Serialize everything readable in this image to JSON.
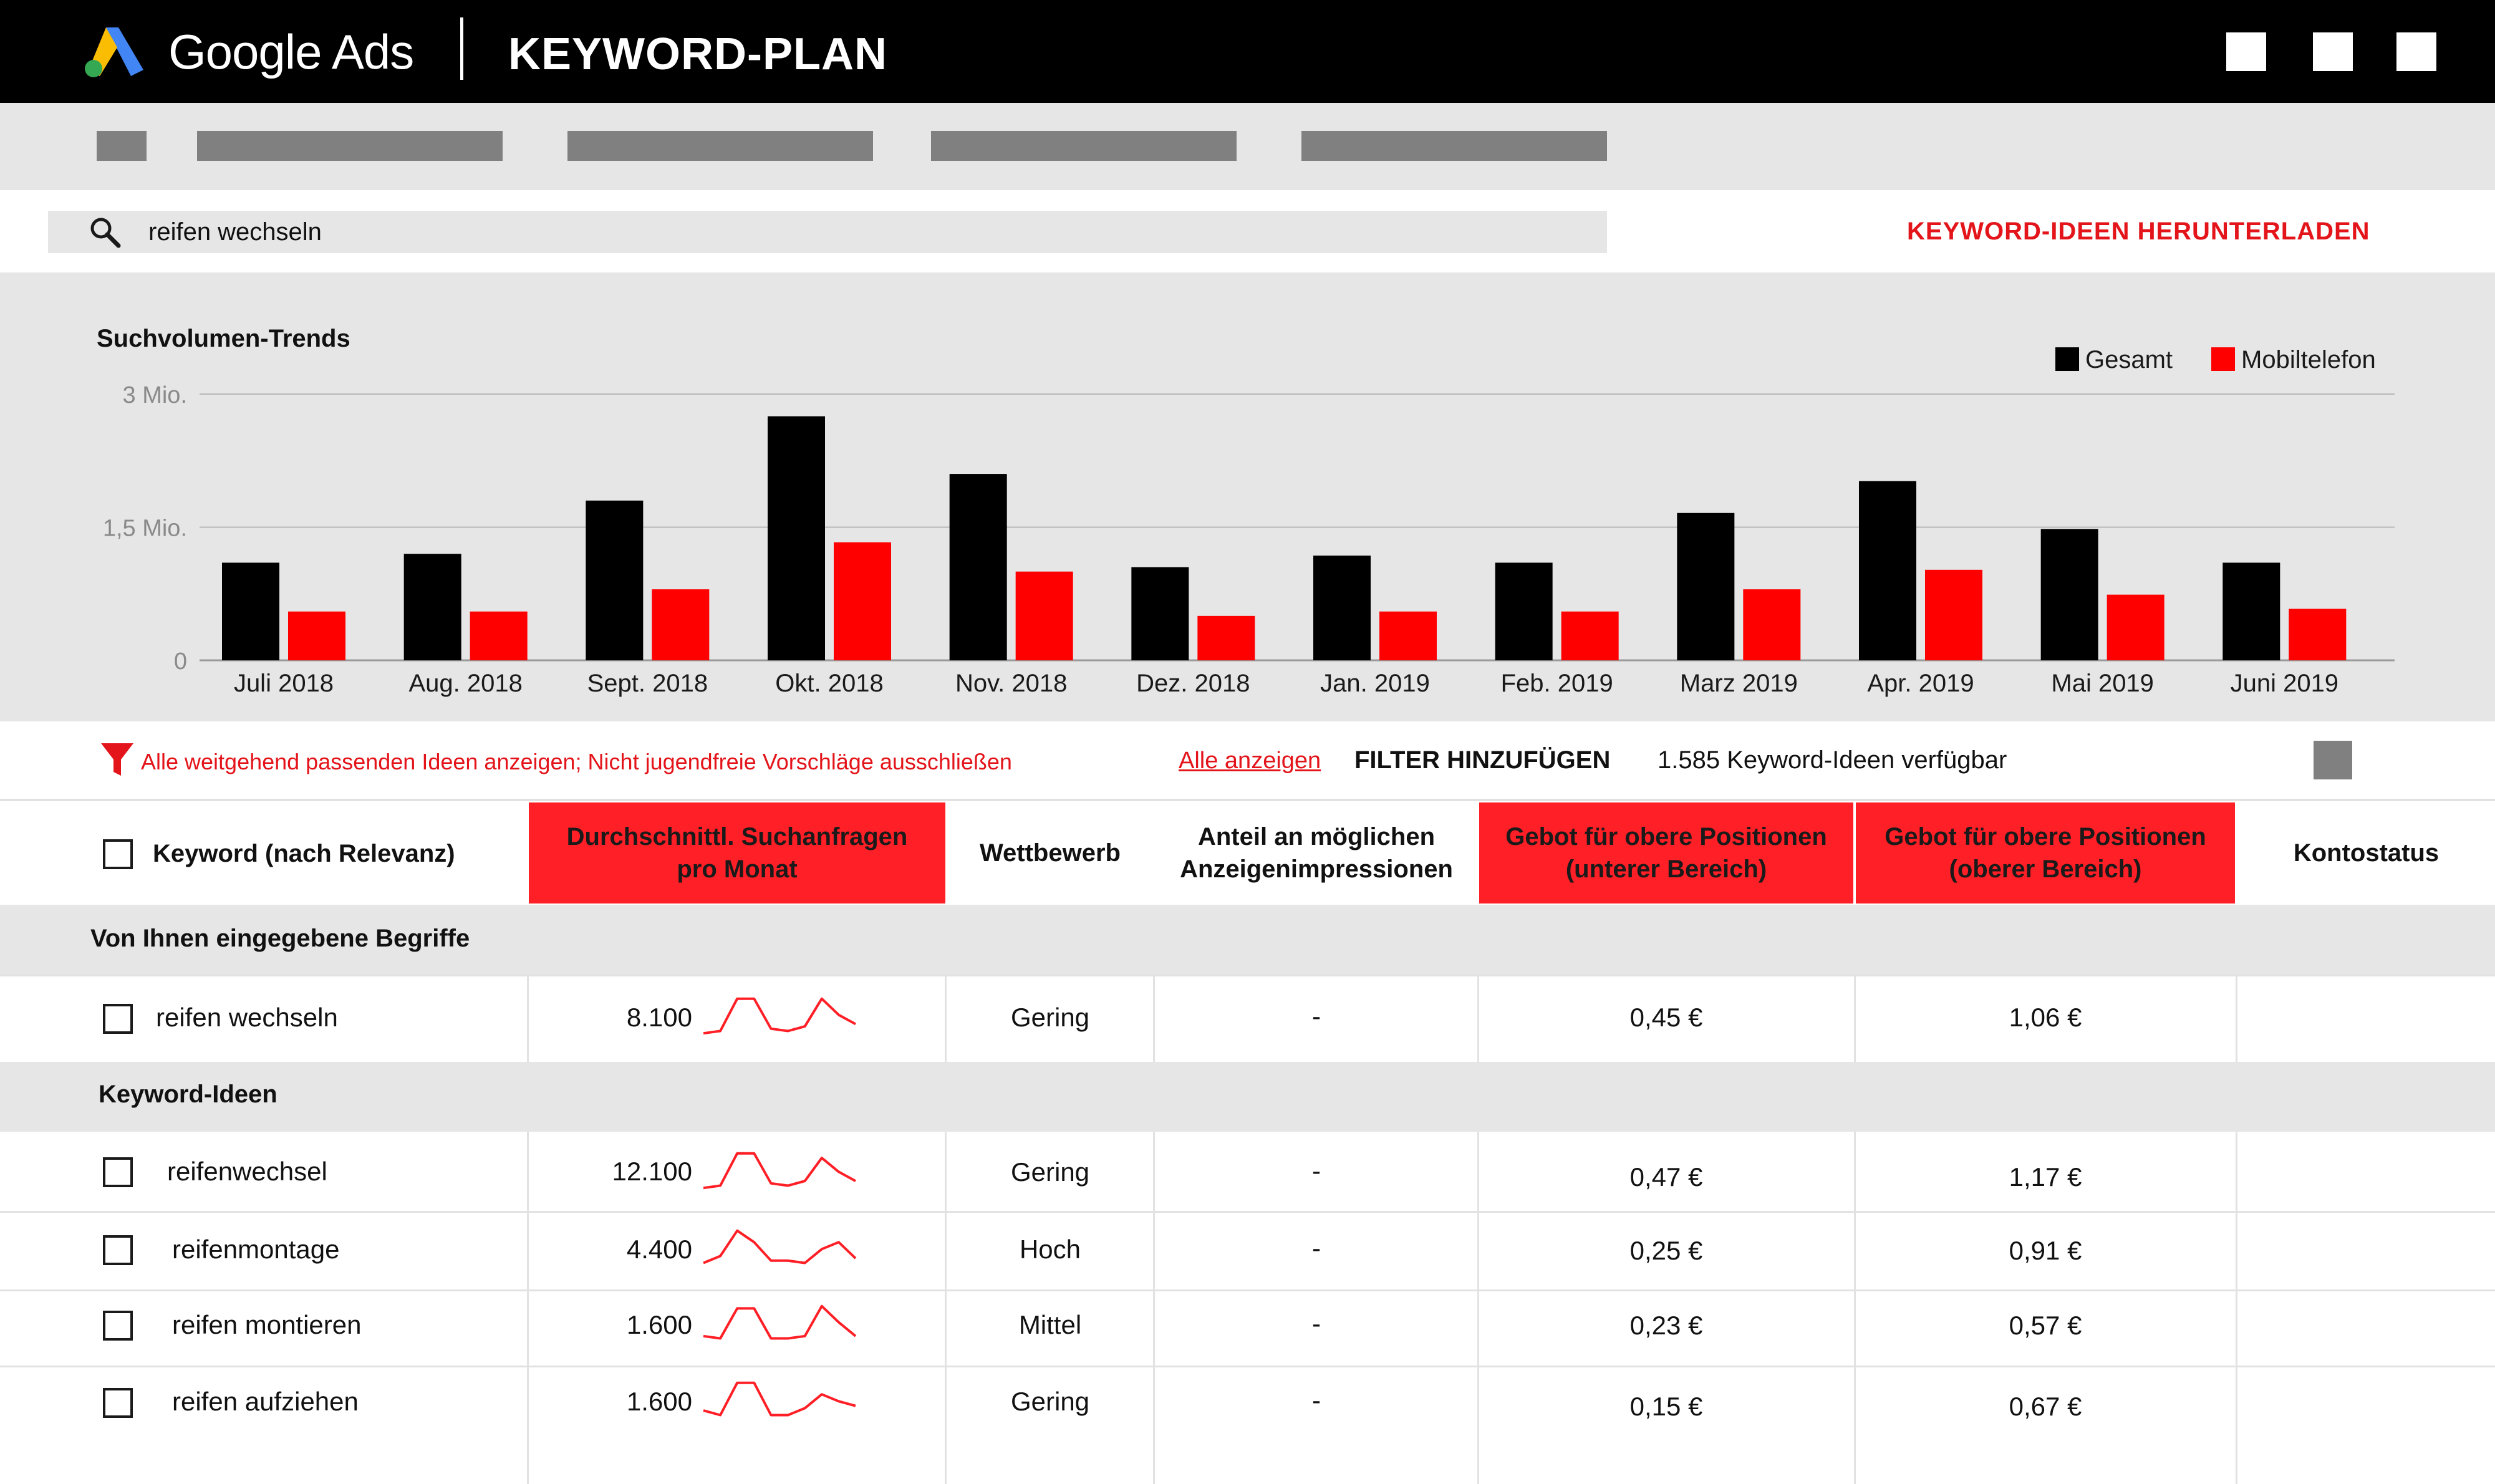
{
  "header": {
    "brand": "Google Ads",
    "title": "KEYWORD-PLAN",
    "window_buttons": [
      "square-button",
      "square-button",
      "square-button"
    ]
  },
  "search": {
    "icon": "search-icon",
    "value": "reifen wechseln",
    "download_label": "KEYWORD-IDEEN HERUNTERLADEN"
  },
  "chart_data": {
    "type": "bar",
    "title": "Suchvolumen-Trends",
    "categories": [
      "Juli 2018",
      "Aug. 2018",
      "Sept. 2018",
      "Okt. 2018",
      "Nov. 2018",
      "Dez. 2018",
      "Jan. 2019",
      "Feb. 2019",
      "Marz 2019",
      "Apr. 2019",
      "Mai 2019",
      "Juni 2019"
    ],
    "series": [
      {
        "name": "Gesamt",
        "color": "#000000",
        "values": [
          1100000,
          1200000,
          1800000,
          2750000,
          2100000,
          1050000,
          1180000,
          1100000,
          1660000,
          2020000,
          1480000,
          1100000
        ]
      },
      {
        "name": "Mobiltelefon",
        "color": "#ff0000",
        "values": [
          550000,
          550000,
          800000,
          1330000,
          1000000,
          500000,
          550000,
          550000,
          800000,
          1020000,
          740000,
          580000
        ]
      }
    ],
    "yticks": [
      "0",
      "1,5 Mio.",
      "3 Mio."
    ],
    "ytick_values": [
      0,
      1500000,
      3000000
    ],
    "ylim": [
      0,
      3000000
    ],
    "legend_position": "top-right",
    "grid": true,
    "xlabel": "",
    "ylabel": ""
  },
  "filter": {
    "icon": "filter-icon",
    "text": "Alle weitgehend passenden Ideen anzeigen; Nicht jugendfreie Vorschläge ausschließen",
    "show_all": "Alle anzeigen",
    "add_filter": "FILTER HINZUFÜGEN",
    "count_text": "1.585 Keyword-Ideen verfügbar"
  },
  "table": {
    "headers": {
      "keyword": "Keyword (nach Relevanz)",
      "avg_searches": [
        "Durchschnittl. Suchanfragen",
        "pro Monat"
      ],
      "competition": "Wettbewerb",
      "impression_share": [
        "Anteil an möglichen",
        "Anzeigenimpressionen"
      ],
      "bid_low": [
        "Gebot für obere Positionen",
        "(unterer Bereich)"
      ],
      "bid_high": [
        "Gebot für obere Positionen",
        "(oberer Bereich)"
      ],
      "account_status": "Kontostatus"
    },
    "section_entered": "Von Ihnen eingegebene Begriffe",
    "section_ideas": "Keyword-Ideen",
    "entered_rows": [
      {
        "keyword": "reifen wechseln",
        "searches": "8.100",
        "competition": "Gering",
        "impression_share": "-",
        "bid_low": "0,45 €",
        "bid_high": "1,06 €",
        "trend": [
          0.2,
          0.25,
          0.95,
          0.95,
          0.3,
          0.25,
          0.35,
          0.95,
          0.6,
          0.4
        ]
      }
    ],
    "idea_rows": [
      {
        "keyword": "reifenwechsel",
        "searches": "12.100",
        "competition": "Gering",
        "impression_share": "-",
        "bid_low": "0,47 €",
        "bid_high": "1,17 €",
        "trend": [
          0.2,
          0.25,
          0.95,
          0.95,
          0.3,
          0.25,
          0.35,
          0.85,
          0.55,
          0.35
        ]
      },
      {
        "keyword": "reifenmontage",
        "searches": "4.400",
        "competition": "Hoch",
        "impression_share": "-",
        "bid_low": "0,25 €",
        "bid_high": "0,91 €",
        "trend": [
          0.25,
          0.4,
          0.95,
          0.7,
          0.3,
          0.3,
          0.25,
          0.55,
          0.7,
          0.35
        ]
      },
      {
        "keyword": "reifen montieren",
        "searches": "1.600",
        "competition": "Mittel",
        "impression_share": "-",
        "bid_low": "0,23 €",
        "bid_high": "0,57 €",
        "trend": [
          0.3,
          0.25,
          0.9,
          0.9,
          0.25,
          0.25,
          0.3,
          0.95,
          0.6,
          0.3
        ]
      },
      {
        "keyword": "reifen aufziehen",
        "searches": "1.600",
        "competition": "Gering",
        "impression_share": "-",
        "bid_low": "0,15 €",
        "bid_high": "0,67 €",
        "trend": [
          0.35,
          0.25,
          0.95,
          0.95,
          0.25,
          0.25,
          0.4,
          0.7,
          0.55,
          0.45
        ]
      }
    ]
  },
  "colors": {
    "accent_red": "#e3141a",
    "header_red": "#ff1f26",
    "panel_grey": "#e6e6e6",
    "placeholder_grey": "#808080"
  }
}
